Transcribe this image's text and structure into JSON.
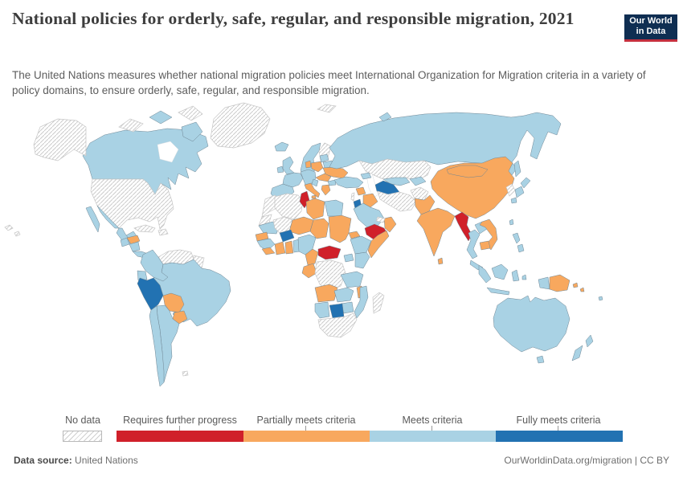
{
  "header": {
    "title": "National policies for orderly, safe, regular, and responsible migration, 2021",
    "subtitle": "The United Nations measures whether national migration policies meet International Organization for Migration criteria in a variety of policy domains, to ensure orderly, safe, regular, and responsible migration.",
    "logo_line1": "Our World",
    "logo_line2": "in Data",
    "logo_bg": "#0f2e52",
    "logo_accent": "#c5303e"
  },
  "legend": {
    "no_data_label": "No data",
    "categories": [
      {
        "key": "requires",
        "label": "Requires further progress",
        "color": "#d0202a"
      },
      {
        "key": "partial",
        "label": "Partially meets criteria",
        "color": "#f8a85e"
      },
      {
        "key": "meets",
        "label": "Meets criteria",
        "color": "#a9d2e4"
      },
      {
        "key": "fully",
        "label": "Fully meets criteria",
        "color": "#2272b2"
      }
    ]
  },
  "footer": {
    "source_label": "Data source:",
    "source_value": " United Nations",
    "credit": "OurWorldinData.org/migration | CC BY"
  },
  "chart_data": {
    "type": "choropleth",
    "title": "National policies for orderly, safe, regular, and responsible migration",
    "year": 2021,
    "source": "United Nations",
    "legend_labels": [
      "No data",
      "Requires further progress",
      "Partially meets criteria",
      "Meets criteria",
      "Fully meets criteria"
    ],
    "colors": {
      "no_data": "hatched",
      "requires": "#d0202a",
      "partial": "#f8a85e",
      "meets": "#a9d2e4",
      "fully": "#2272b2",
      "water": "#ffffff"
    },
    "regions": {
      "usa": {
        "label": "United States",
        "status": "no_data"
      },
      "canada": {
        "label": "Canada",
        "status": "meets"
      },
      "arctic_islands": {
        "label": "Arctic islands",
        "status": "no_data"
      },
      "greenland": {
        "label": "Greenland",
        "status": "no_data"
      },
      "iceland": {
        "label": "Iceland",
        "status": "meets"
      },
      "mexico": {
        "label": "Mexico",
        "status": "meets"
      },
      "guatemala": {
        "label": "Guatemala",
        "status": "meets"
      },
      "honduras": {
        "label": "Honduras",
        "status": "partial"
      },
      "nicaragua": {
        "label": "Nicaragua",
        "status": "meets"
      },
      "costa_panama": {
        "label": "Costa Rica & Panama",
        "status": "meets"
      },
      "cuba": {
        "label": "Cuba",
        "status": "no_data"
      },
      "hispaniola": {
        "label": "Haiti & Dominican Republic",
        "status": "no_data"
      },
      "venezuela": {
        "label": "Venezuela",
        "status": "no_data"
      },
      "guyanas": {
        "label": "Guyana & Suriname",
        "status": "no_data"
      },
      "colombia": {
        "label": "Colombia",
        "status": "meets"
      },
      "ecuador": {
        "label": "Ecuador",
        "status": "meets"
      },
      "peru": {
        "label": "Peru",
        "status": "fully"
      },
      "brazil": {
        "label": "Brazil",
        "status": "meets"
      },
      "bolivia": {
        "label": "Bolivia",
        "status": "partial"
      },
      "paraguay": {
        "label": "Paraguay",
        "status": "partial"
      },
      "argentina": {
        "label": "Argentina",
        "status": "meets"
      },
      "chile": {
        "label": "Chile",
        "status": "meets"
      },
      "falklands": {
        "label": "Falkland Islands",
        "status": "no_data"
      },
      "uk": {
        "label": "United Kingdom",
        "status": "meets"
      },
      "ireland": {
        "label": "Ireland",
        "status": "meets"
      },
      "scandinavia": {
        "label": "Norway & Sweden",
        "status": "meets"
      },
      "finland": {
        "label": "Finland",
        "status": "no_data"
      },
      "denmark": {
        "label": "Denmark",
        "status": "partial"
      },
      "baltics": {
        "label": "Baltic states",
        "status": "meets"
      },
      "belarus": {
        "label": "Belarus",
        "status": "meets"
      },
      "poland": {
        "label": "Poland",
        "status": "partial"
      },
      "germany_central": {
        "label": "Germany & Central Europe",
        "status": "meets"
      },
      "france": {
        "label": "France",
        "status": "meets"
      },
      "iberia": {
        "label": "Spain & Portugal",
        "status": "meets"
      },
      "italy": {
        "label": "Italy",
        "status": "partial"
      },
      "ukraine": {
        "label": "Ukraine",
        "status": "partial"
      },
      "romania_hungary": {
        "label": "Hungary & Romania",
        "status": "partial"
      },
      "balkans": {
        "label": "Western Balkans",
        "status": "meets"
      },
      "bulgaria": {
        "label": "Bulgaria",
        "status": "meets"
      },
      "greece": {
        "label": "Greece",
        "status": "partial"
      },
      "svalbard": {
        "label": "Svalbard",
        "status": "no_data"
      },
      "russia": {
        "label": "Russia",
        "status": "meets"
      },
      "kazakhstan": {
        "label": "Kazakhstan",
        "status": "no_data"
      },
      "uzbekistan": {
        "label": "Uzbekistan",
        "status": "meets"
      },
      "kyrgyz_tajik": {
        "label": "Kyrgyzstan & Tajikistan",
        "status": "meets"
      },
      "turkmenistan": {
        "label": "Turkmenistan",
        "status": "fully"
      },
      "caucasus": {
        "label": "Caucasus",
        "status": "meets"
      },
      "turkey": {
        "label": "Turkey",
        "status": "meets"
      },
      "syria": {
        "label": "Syria",
        "status": "partial"
      },
      "israel": {
        "label": "Israel",
        "status": "no_data"
      },
      "jordan": {
        "label": "Jordan",
        "status": "fully"
      },
      "iraq": {
        "label": "Iraq",
        "status": "partial"
      },
      "iran": {
        "label": "Iran",
        "status": "no_data"
      },
      "afghanistan": {
        "label": "Afghanistan",
        "status": "no_data"
      },
      "pakistan": {
        "label": "Pakistan",
        "status": "partial"
      },
      "saudi": {
        "label": "Saudi Arabia",
        "status": "meets"
      },
      "yemen": {
        "label": "Yemen",
        "status": "requires"
      },
      "oman": {
        "label": "Oman",
        "status": "partial"
      },
      "uae": {
        "label": "United Arab Emirates",
        "status": "no_data"
      },
      "china": {
        "label": "China",
        "status": "partial"
      },
      "mongolia": {
        "label": "Mongolia",
        "status": "partial"
      },
      "india": {
        "label": "India",
        "status": "partial"
      },
      "sri_lanka": {
        "label": "Sri Lanka",
        "status": "partial"
      },
      "myanmar": {
        "label": "Myanmar",
        "status": "requires"
      },
      "thailand": {
        "label": "Thailand",
        "status": "meets"
      },
      "laos": {
        "label": "Laos",
        "status": "meets"
      },
      "vietnam": {
        "label": "Vietnam",
        "status": "partial"
      },
      "cambodia": {
        "label": "Cambodia",
        "status": "partial"
      },
      "malaysia": {
        "label": "Malaysia",
        "status": "meets"
      },
      "korea": {
        "label": "Korea",
        "status": "no_data"
      },
      "japan": {
        "label": "Japan",
        "status": "meets"
      },
      "taiwan": {
        "label": "Taiwan",
        "status": "meets"
      },
      "philippines": {
        "label": "Philippines",
        "status": "meets"
      },
      "indonesia": {
        "label": "Indonesia",
        "status": "meets"
      },
      "png": {
        "label": "Papua New Guinea",
        "status": "partial"
      },
      "solomons": {
        "label": "Solomon Islands",
        "status": "partial"
      },
      "fiji": {
        "label": "Fiji",
        "status": "meets"
      },
      "australia": {
        "label": "Australia",
        "status": "meets"
      },
      "nz": {
        "label": "New Zealand",
        "status": "meets"
      },
      "morocco": {
        "label": "Morocco",
        "status": "no_data"
      },
      "wsahara": {
        "label": "Western Sahara",
        "status": "no_data"
      },
      "mauritania": {
        "label": "Mauritania",
        "status": "meets"
      },
      "senegal": {
        "label": "Senegal",
        "status": "partial"
      },
      "guinea": {
        "label": "Guinea",
        "status": "meets"
      },
      "sierra_liberia": {
        "label": "Sierra Leone & Liberia",
        "status": "partial"
      },
      "algeria": {
        "label": "Algeria",
        "status": "no_data"
      },
      "tunisia": {
        "label": "Tunisia",
        "status": "requires"
      },
      "libya": {
        "label": "Libya",
        "status": "partial"
      },
      "egypt": {
        "label": "Egypt",
        "status": "meets"
      },
      "mali": {
        "label": "Mali",
        "status": "no_data"
      },
      "burkina": {
        "label": "Burkina Faso",
        "status": "fully"
      },
      "niger": {
        "label": "Niger",
        "status": "partial"
      },
      "chad": {
        "label": "Chad",
        "status": "partial"
      },
      "sudan": {
        "label": "Sudan",
        "status": "partial"
      },
      "eritrea": {
        "label": "Eritrea",
        "status": "partial"
      },
      "ethiopia": {
        "label": "Ethiopia",
        "status": "meets"
      },
      "somalia": {
        "label": "Somalia",
        "status": "partial"
      },
      "kenya": {
        "label": "Kenya",
        "status": "meets"
      },
      "uganda": {
        "label": "Uganda",
        "status": "meets"
      },
      "ivory": {
        "label": "Côte d'Ivoire",
        "status": "partial"
      },
      "ghana": {
        "label": "Ghana",
        "status": "partial"
      },
      "togo_benin": {
        "label": "Togo & Benin",
        "status": "meets"
      },
      "nigeria": {
        "label": "Nigeria",
        "status": "meets"
      },
      "cameroon": {
        "label": "Cameroon",
        "status": "partial"
      },
      "car": {
        "label": "Central African Republic",
        "status": "requires"
      },
      "gabon_congo": {
        "label": "Gabon & Congo",
        "status": "partial"
      },
      "drc": {
        "label": "Democratic Republic of Congo",
        "status": "no_data"
      },
      "tanzania": {
        "label": "Tanzania",
        "status": "meets"
      },
      "malawi": {
        "label": "Malawi",
        "status": "partial"
      },
      "angola": {
        "label": "Angola",
        "status": "partial"
      },
      "zambia": {
        "label": "Zambia",
        "status": "meets"
      },
      "mozambique": {
        "label": "Mozambique",
        "status": "meets"
      },
      "zimbabwe": {
        "label": "Zimbabwe",
        "status": "meets"
      },
      "namibia": {
        "label": "Namibia",
        "status": "meets"
      },
      "botswana": {
        "label": "Botswana",
        "status": "fully"
      },
      "south_africa": {
        "label": "South Africa",
        "status": "no_data"
      },
      "madagascar": {
        "label": "Madagascar",
        "status": "no_data"
      },
      "hudson_bay": {
        "label": "Hudson Bay",
        "status": "water"
      },
      "caspian_sea": {
        "label": "Caspian Sea",
        "status": "water"
      }
    }
  }
}
